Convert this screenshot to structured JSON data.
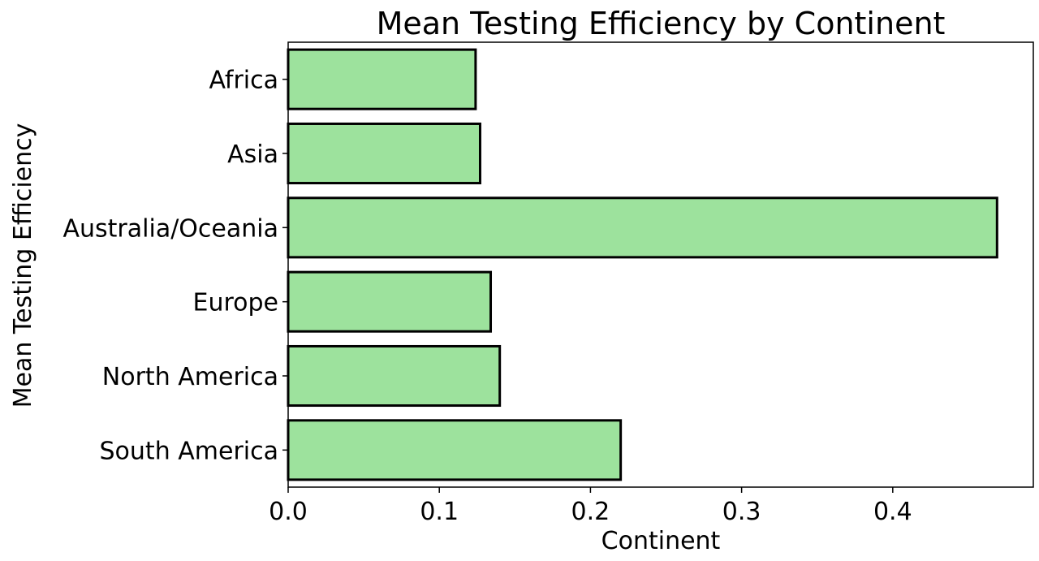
{
  "chart_data": {
    "type": "bar",
    "orientation": "horizontal",
    "title": "Mean Testing Efficiency by Continent",
    "xlabel": "Continent",
    "ylabel": "Mean Testing Efficiency",
    "categories": [
      "Africa",
      "Asia",
      "Australia/Oceania",
      "Europe",
      "North America",
      "South America"
    ],
    "values": [
      0.124,
      0.127,
      0.469,
      0.134,
      0.14,
      0.22
    ],
    "xlim": [
      0,
      0.493
    ],
    "xticks": [
      0.0,
      0.1,
      0.2,
      0.3,
      0.4
    ],
    "xtick_labels": [
      "0.0",
      "0.1",
      "0.2",
      "0.3",
      "0.4"
    ],
    "bar_color": "#9de29d",
    "edge_color": "#000000",
    "grid": false
  }
}
